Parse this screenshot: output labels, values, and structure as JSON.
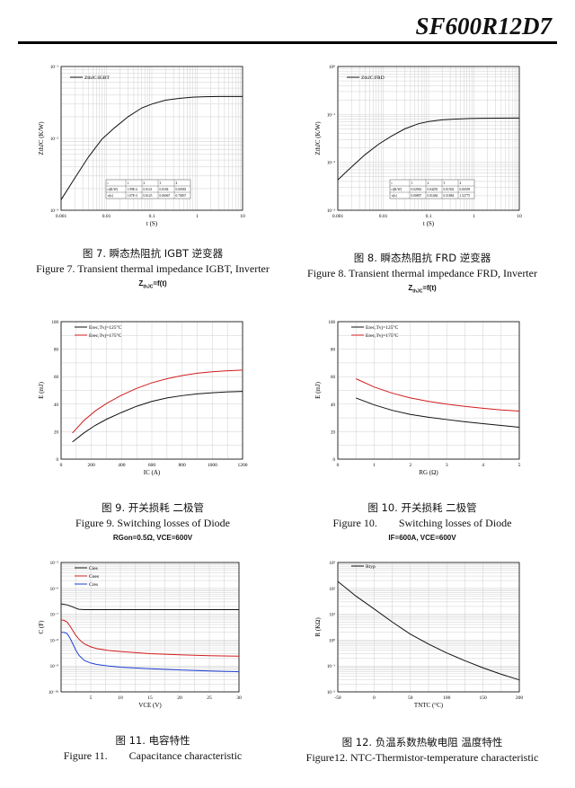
{
  "header": {
    "model": "SF600R12D7"
  },
  "figures": [
    {
      "cn": "图 7.  瞬态热阻抗  IGBT  逆变器",
      "en": "Figure 7. Transient thermal impedance IGBT, Inverter",
      "sub": "Z",
      "sub_idx": "thJC",
      "sub_rest": "=f(t)"
    },
    {
      "cn": "图 8.  瞬态热阻抗  FRD  逆变器",
      "en": "Figure 8.  Transient thermal impedance FRD, Inverter",
      "sub": "Z",
      "sub_idx": "thJC",
      "sub_rest": "=f(t)"
    },
    {
      "cn": "图 9.  开关损耗  二极管",
      "en": "Figure 9.  Switching losses of Diode",
      "sub": "RGon=0.5Ω, VCE=600V"
    },
    {
      "cn": "图 10.  开关损耗  二极管",
      "en_a": "Figure 10.",
      "en_b": "Switching losses of Diode",
      "sub": "IF=600A, VCE=600V"
    },
    {
      "cn": "图 11.  电容特性",
      "en_a": "Figure 11.",
      "en_b": "Capacitance characteristic"
    },
    {
      "cn": "图 12.  负温系数热敏电阻  温度特性",
      "en": "Figure12.   NTC-Thermistor-temperature characteristic"
    }
  ],
  "chart_data": [
    {
      "type": "line",
      "title": "",
      "xlabel": "t (S)",
      "ylabel": "ZthJC (K/W)",
      "xscale": "log",
      "yscale": "log",
      "xlim": [
        0.001,
        10
      ],
      "ylim": [
        0.001,
        0.1
      ],
      "xticks": [
        "0.001",
        "0.01",
        "0.1",
        "1",
        "10"
      ],
      "yticks": [
        "10⁻³",
        "10⁻²",
        "10⁻¹"
      ],
      "legend": [
        "ZthJC:IGBT"
      ],
      "series": [
        {
          "name": "ZthJC:IGBT",
          "x": [
            0.001,
            0.002,
            0.004,
            0.008,
            0.015,
            0.03,
            0.06,
            0.1,
            0.2,
            0.4,
            0.8,
            1.5,
            3,
            10
          ],
          "y": [
            0.0014,
            0.0028,
            0.0055,
            0.0098,
            0.014,
            0.02,
            0.0265,
            0.03,
            0.034,
            0.036,
            0.0375,
            0.038,
            0.0382,
            0.0383
          ]
        }
      ],
      "table": {
        "rows": [
          [
            "i",
            "1",
            "2",
            "3",
            "4"
          ],
          [
            "ri[K/W]",
            "1.99E-4",
            "0.0141",
            "0.0184",
            "0.00583"
          ],
          [
            "τi[s]",
            "1.07E-3",
            "0.0125",
            "0.06067",
            "0.70837"
          ]
        ]
      }
    },
    {
      "type": "line",
      "title": "",
      "xlabel": "t (S)",
      "ylabel": "ZthJC (K/W)",
      "xscale": "log",
      "yscale": "log",
      "xlim": [
        0.001,
        10
      ],
      "ylim": [
        0.001,
        1
      ],
      "xticks": [
        "0.001",
        "0.01",
        "0.1",
        "1",
        "10"
      ],
      "yticks": [
        "10⁻³",
        "10⁻²",
        "10⁻¹",
        "10⁰"
      ],
      "legend": [
        "ZthJC:FRD"
      ],
      "series": [
        {
          "name": "ZthJC:FRD",
          "x": [
            0.001,
            0.002,
            0.004,
            0.008,
            0.015,
            0.03,
            0.06,
            0.1,
            0.2,
            0.4,
            0.8,
            1.5,
            3,
            10
          ],
          "y": [
            0.0043,
            0.008,
            0.0145,
            0.024,
            0.035,
            0.05,
            0.064,
            0.071,
            0.077,
            0.08,
            0.082,
            0.083,
            0.0835,
            0.084
          ]
        }
      ],
      "table": {
        "rows": [
          [
            "i",
            "1",
            "2",
            "3",
            "4"
          ],
          [
            "ri[K/W]",
            "0.02963",
            "0.04293",
            "0.01502",
            "0.00359"
          ],
          [
            "τi[s]",
            "0.00897",
            "0.01484",
            "0.51884",
            "1.52775"
          ]
        ]
      }
    },
    {
      "type": "line",
      "title": "",
      "xlabel": "IC (A)",
      "ylabel": "E (mJ)",
      "xlim": [
        0,
        1200
      ],
      "ylim": [
        0,
        100
      ],
      "xticks": [
        "0",
        "200",
        "400",
        "600",
        "800",
        "1000",
        "1200"
      ],
      "yticks": [
        "0",
        "20",
        "40",
        "60",
        "80",
        "100"
      ],
      "legend": [
        "Erec,Tvj=125°C",
        "Erec,Tvj=175°C"
      ],
      "series": [
        {
          "name": "Erec,Tvj=125°C",
          "color": "#111111",
          "x": [
            75,
            150,
            225,
            300,
            400,
            500,
            600,
            700,
            800,
            900,
            1000,
            1100,
            1200
          ],
          "y": [
            12.5,
            19,
            24.5,
            29,
            34,
            38.5,
            42,
            44.5,
            46.2,
            47.5,
            48.3,
            48.9,
            49.3
          ]
        },
        {
          "name": "Erec,Tvj=175°C",
          "color": "#d11c1c",
          "x": [
            75,
            150,
            225,
            300,
            400,
            500,
            600,
            700,
            800,
            900,
            1000,
            1100,
            1200
          ],
          "y": [
            19,
            28,
            35,
            40.5,
            46.5,
            51.5,
            55.5,
            58.5,
            60.8,
            62.5,
            63.6,
            64.3,
            64.8
          ]
        }
      ]
    },
    {
      "type": "line",
      "title": "",
      "xlabel": "RG (Ω)",
      "ylabel": "E (mJ)",
      "xlim": [
        0,
        5
      ],
      "ylim": [
        0,
        100
      ],
      "xticks": [
        "0",
        "1",
        "2",
        "3",
        "4",
        "5"
      ],
      "yticks": [
        "0",
        "20",
        "40",
        "60",
        "80",
        "100"
      ],
      "legend": [
        "Erec,Tvj=125°C",
        "Erec,Tvj=175°C"
      ],
      "series": [
        {
          "name": "Erec,Tvj=125°C",
          "color": "#111111",
          "x": [
            0.5,
            1,
            1.5,
            2,
            2.5,
            3,
            3.5,
            4,
            4.5,
            5
          ],
          "y": [
            44.5,
            39.5,
            35.5,
            32.5,
            30.5,
            28.8,
            27.2,
            25.8,
            24.5,
            23.2
          ]
        },
        {
          "name": "Erec,Tvj=175°C",
          "color": "#d11c1c",
          "x": [
            0.5,
            1,
            1.5,
            2,
            2.5,
            3,
            3.5,
            4,
            4.5,
            5
          ],
          "y": [
            58.5,
            52.5,
            48,
            44.5,
            42,
            40,
            38.4,
            37,
            35.8,
            35
          ]
        }
      ]
    },
    {
      "type": "line",
      "title": "",
      "xlabel": "VCE (V)",
      "ylabel": "C (F)",
      "yscale": "log",
      "xlim": [
        0,
        30
      ],
      "ylim": [
        1e-10,
        1e-05
      ],
      "xticks": [
        "5",
        "10",
        "15",
        "20",
        "25",
        "30"
      ],
      "yticks": [
        "10⁻¹⁰",
        "10⁻⁹",
        "10⁻⁸",
        "10⁻⁷",
        "10⁻⁶",
        "10⁻⁵"
      ],
      "legend": [
        "Cies",
        "Coes",
        "Cres"
      ],
      "series": [
        {
          "name": "Cies",
          "color": "#111111",
          "x": [
            0,
            0.5,
            1,
            1.5,
            2,
            2.5,
            3,
            4,
            5,
            10,
            15,
            20,
            25,
            30
          ],
          "y": [
            2.5e-07,
            2.4e-07,
            2.3e-07,
            2.1e-07,
            1.9e-07,
            1.7e-07,
            1.55e-07,
            1.5e-07,
            1.5e-07,
            1.5e-07,
            1.5e-07,
            1.5e-07,
            1.5e-07,
            1.5e-07
          ]
        },
        {
          "name": "Coes",
          "color": "#d11c1c",
          "x": [
            0,
            0.5,
            1,
            1.5,
            2,
            2.5,
            3,
            3.5,
            4,
            5,
            6,
            8,
            10,
            15,
            20,
            25,
            30
          ],
          "y": [
            6e-08,
            5.8e-08,
            5e-08,
            3.5e-08,
            2.3e-08,
            1.5e-08,
            1.1e-08,
            8.5e-09,
            7e-09,
            5.5e-09,
            4.7e-09,
            4e-09,
            3.6e-09,
            3e-09,
            2.7e-09,
            2.5e-09,
            2.4e-09
          ]
        },
        {
          "name": "Cres",
          "color": "#1f3fd6",
          "x": [
            0,
            0.5,
            1,
            1.5,
            2,
            2.5,
            3,
            3.5,
            4,
            5,
            6,
            8,
            10,
            15,
            20,
            25,
            30
          ],
          "y": [
            2e-08,
            2e-08,
            1.8e-08,
            1.2e-08,
            7e-09,
            4e-09,
            2.6e-09,
            2e-09,
            1.6e-09,
            1.3e-09,
            1.15e-09,
            1e-09,
            9e-10,
            7.8e-10,
            7e-10,
            6.4e-10,
            6e-10
          ]
        }
      ]
    },
    {
      "type": "line",
      "title": "",
      "xlabel": "TNTC (°C)",
      "ylabel": "R (KΩ)",
      "yscale": "log",
      "xlim": [
        -50,
        200
      ],
      "ylim": [
        0.01,
        1000
      ],
      "xticks": [
        "-50",
        "0",
        "50",
        "100",
        "150",
        "200"
      ],
      "yticks": [
        "10⁻²",
        "10⁻¹",
        "10⁰",
        "10¹",
        "10²",
        "10³"
      ],
      "legend": [
        "Rtyp"
      ],
      "series": [
        {
          "name": "Rtyp",
          "color": "#111111",
          "x": [
            -50,
            -25,
            0,
            25,
            50,
            75,
            100,
            125,
            150,
            175,
            200
          ],
          "y": [
            185,
            50,
            16,
            5,
            1.7,
            0.7,
            0.32,
            0.16,
            0.085,
            0.048,
            0.029
          ]
        }
      ]
    }
  ]
}
